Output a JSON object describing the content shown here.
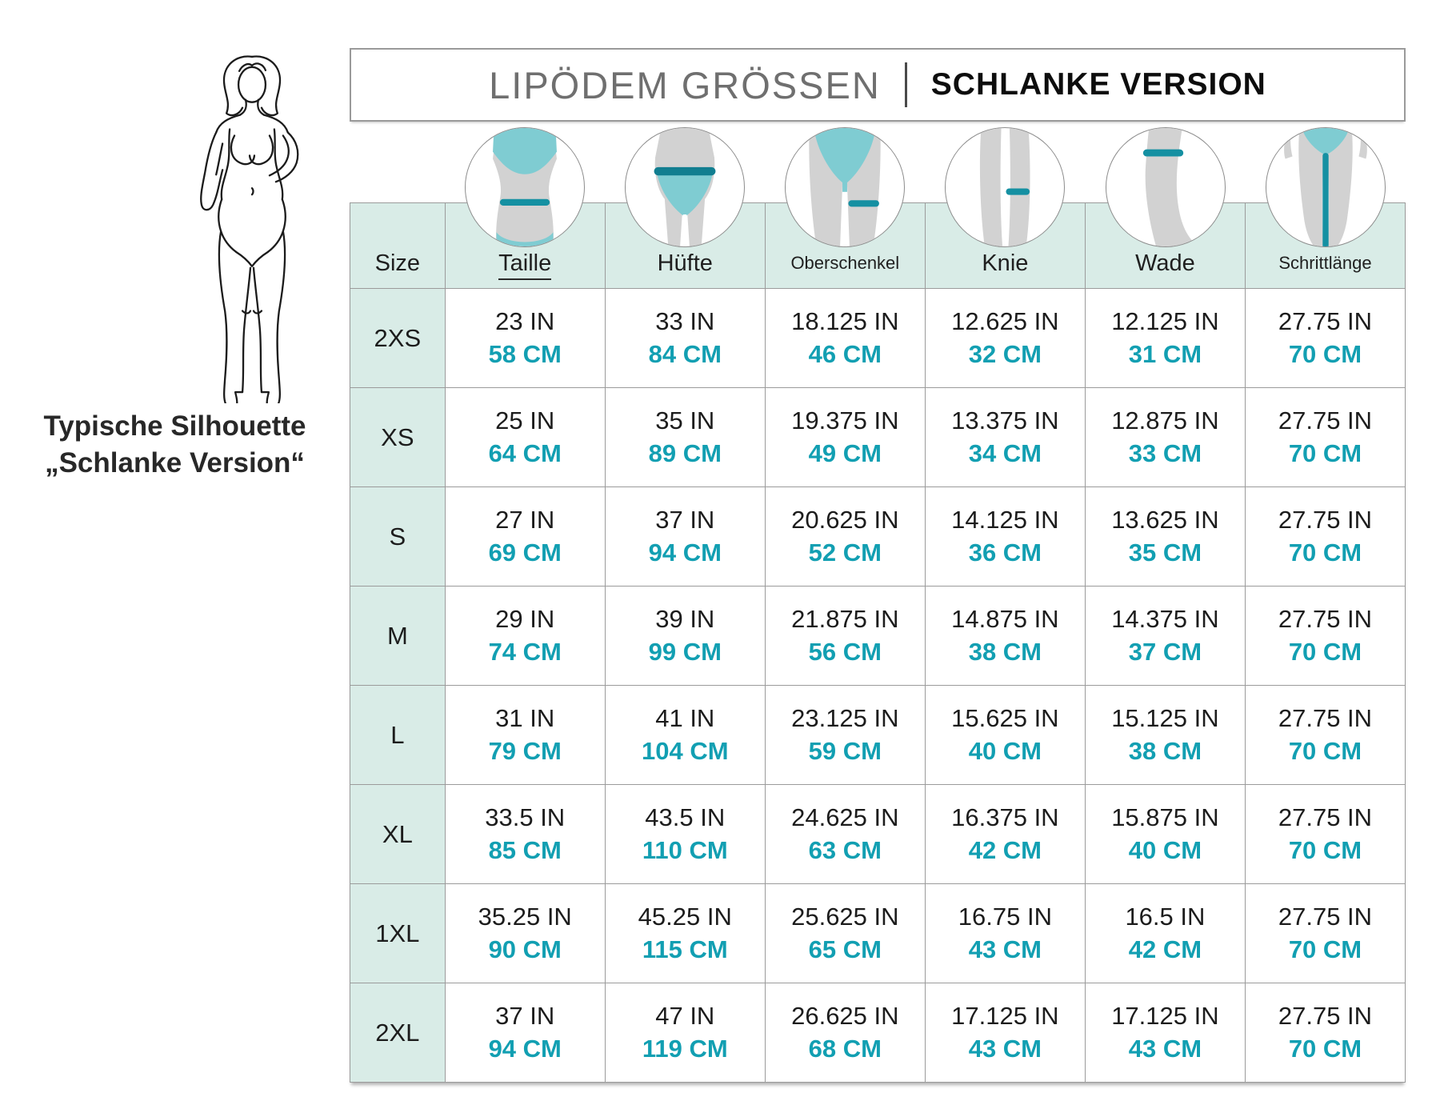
{
  "title_bar": {
    "left": "LIPÖDEM GRÖSSEN",
    "right": "SCHLANKE VERSION"
  },
  "silhouette": {
    "caption_line1": "Typische Silhouette",
    "caption_line2": "„Schlanke Version“",
    "illustration": "female-outline-figure"
  },
  "colors": {
    "accent_teal_text": "#129fb2",
    "accent_teal_line": "#1590a2",
    "accent_teal_fill": "#7fccd2",
    "mint_header": "#d9ece7",
    "grid_border": "#9b9b9b",
    "title_gray": "#6f6f6f"
  },
  "chart_data": {
    "type": "table",
    "title": "LIPÖDEM GRÖSSEN",
    "subtitle": "SCHLANKE VERSION",
    "columns": [
      {
        "key": "size",
        "label": "Size",
        "icon": null
      },
      {
        "key": "taille",
        "label": "Taille",
        "icon": "waist-measure-icon",
        "underline": true
      },
      {
        "key": "huefte",
        "label": "Hüfte",
        "icon": "hip-measure-icon"
      },
      {
        "key": "oberschenkel",
        "label": "Oberschenkel",
        "icon": "thigh-measure-icon",
        "small": true
      },
      {
        "key": "knie",
        "label": "Knie",
        "icon": "knee-measure-icon"
      },
      {
        "key": "wade",
        "label": "Wade",
        "icon": "calf-measure-icon"
      },
      {
        "key": "schrittlaenge",
        "label": "Schrittlänge",
        "icon": "inseam-measure-icon",
        "small": true
      }
    ],
    "rows": [
      {
        "size": "2XS",
        "cells": [
          {
            "in": "23 IN",
            "cm": "58 CM"
          },
          {
            "in": "33 IN",
            "cm": "84 CM"
          },
          {
            "in": "18.125 IN",
            "cm": "46 CM"
          },
          {
            "in": "12.625 IN",
            "cm": "32 CM"
          },
          {
            "in": "12.125 IN",
            "cm": "31 CM"
          },
          {
            "in": "27.75 IN",
            "cm": "70 CM"
          }
        ]
      },
      {
        "size": "XS",
        "cells": [
          {
            "in": "25 IN",
            "cm": "64 CM"
          },
          {
            "in": "35 IN",
            "cm": "89 CM"
          },
          {
            "in": "19.375 IN",
            "cm": "49 CM"
          },
          {
            "in": "13.375 IN",
            "cm": "34 CM"
          },
          {
            "in": "12.875 IN",
            "cm": "33 CM"
          },
          {
            "in": "27.75 IN",
            "cm": "70 CM"
          }
        ]
      },
      {
        "size": "S",
        "cells": [
          {
            "in": "27 IN",
            "cm": "69 CM"
          },
          {
            "in": "37 IN",
            "cm": "94 CM"
          },
          {
            "in": "20.625 IN",
            "cm": "52 CM"
          },
          {
            "in": "14.125 IN",
            "cm": "36 CM"
          },
          {
            "in": "13.625 IN",
            "cm": "35 CM"
          },
          {
            "in": "27.75 IN",
            "cm": "70 CM"
          }
        ]
      },
      {
        "size": "M",
        "cells": [
          {
            "in": "29 IN",
            "cm": "74 CM"
          },
          {
            "in": "39 IN",
            "cm": "99 CM"
          },
          {
            "in": "21.875 IN",
            "cm": "56 CM"
          },
          {
            "in": "14.875 IN",
            "cm": "38 CM"
          },
          {
            "in": "14.375 IN",
            "cm": "37 CM"
          },
          {
            "in": "27.75 IN",
            "cm": "70 CM"
          }
        ]
      },
      {
        "size": "L",
        "cells": [
          {
            "in": "31 IN",
            "cm": "79 CM"
          },
          {
            "in": "41 IN",
            "cm": "104 CM"
          },
          {
            "in": "23.125 IN",
            "cm": "59 CM"
          },
          {
            "in": "15.625 IN",
            "cm": "40 CM"
          },
          {
            "in": "15.125 IN",
            "cm": "38 CM"
          },
          {
            "in": "27.75 IN",
            "cm": "70 CM"
          }
        ]
      },
      {
        "size": "XL",
        "cells": [
          {
            "in": "33.5 IN",
            "cm": "85 CM"
          },
          {
            "in": "43.5 IN",
            "cm": "110 CM"
          },
          {
            "in": "24.625 IN",
            "cm": "63 CM"
          },
          {
            "in": "16.375 IN",
            "cm": "42 CM"
          },
          {
            "in": "15.875 IN",
            "cm": "40 CM"
          },
          {
            "in": "27.75 IN",
            "cm": "70 CM"
          }
        ]
      },
      {
        "size": "1XL",
        "cells": [
          {
            "in": "35.25 IN",
            "cm": "90 CM"
          },
          {
            "in": "45.25 IN",
            "cm": "115 CM"
          },
          {
            "in": "25.625 IN",
            "cm": "65 CM"
          },
          {
            "in": "16.75 IN",
            "cm": "43 CM"
          },
          {
            "in": "16.5 IN",
            "cm": "42 CM"
          },
          {
            "in": "27.75 IN",
            "cm": "70 CM"
          }
        ]
      },
      {
        "size": "2XL",
        "cells": [
          {
            "in": "37 IN",
            "cm": "94 CM"
          },
          {
            "in": "47 IN",
            "cm": "119 CM"
          },
          {
            "in": "26.625 IN",
            "cm": "68 CM"
          },
          {
            "in": "17.125 IN",
            "cm": "43 CM"
          },
          {
            "in": "17.125 IN",
            "cm": "43 CM"
          },
          {
            "in": "27.75 IN",
            "cm": "70 CM"
          }
        ]
      }
    ]
  }
}
